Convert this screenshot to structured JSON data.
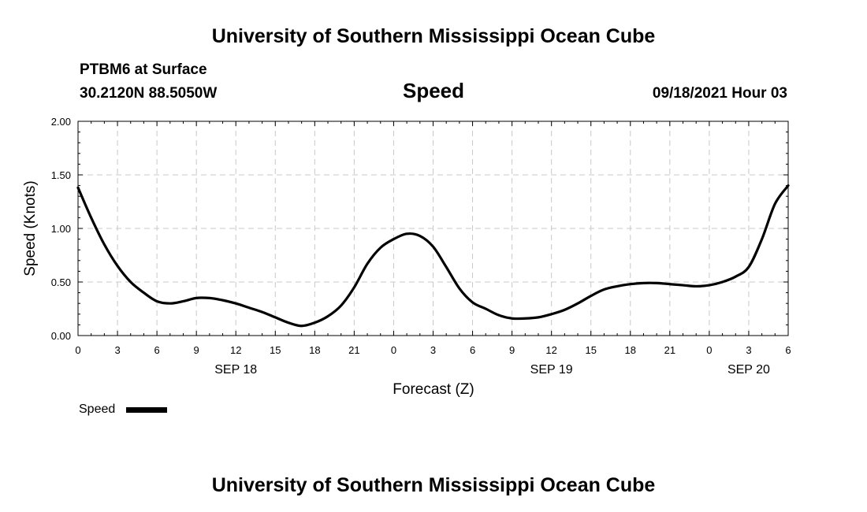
{
  "header": {
    "title_top": "University of Southern Mississippi Ocean Cube",
    "title_bottom": "University of Southern Mississippi Ocean Cube",
    "station": "PTBM6 at Surface",
    "coords": "30.2120N  88.5050W",
    "datetime": "09/18/2021 Hour 03"
  },
  "chart_data": {
    "type": "line",
    "title": "Speed",
    "xlabel": "Forecast (Z)",
    "ylabel": "Speed (Knots)",
    "ylim": [
      0,
      2
    ],
    "xlim": [
      0,
      54
    ],
    "grid": true,
    "x_tick_labels": [
      "0",
      "3",
      "6",
      "9",
      "12",
      "15",
      "18",
      "21",
      "0",
      "3",
      "6",
      "9",
      "12",
      "15",
      "18",
      "21",
      "0",
      "3",
      "6"
    ],
    "y_tick_labels": [
      "0.00",
      "0.50",
      "1.00",
      "1.50",
      "2.00"
    ],
    "y_ticks": [
      0,
      0.5,
      1.0,
      1.5,
      2.0
    ],
    "date_labels": [
      {
        "label": "SEP 18",
        "x": 12
      },
      {
        "label": "SEP 19",
        "x": 36
      },
      {
        "label": "SEP 20",
        "x": 51
      }
    ],
    "legend": {
      "label": "Speed",
      "position": "bottom-left"
    },
    "series": [
      {
        "name": "Speed",
        "x": [
          0,
          1,
          2,
          3,
          4,
          5,
          6,
          7,
          8,
          9,
          10,
          11,
          12,
          13,
          14,
          15,
          16,
          17,
          18,
          19,
          20,
          21,
          22,
          23,
          24,
          25,
          26,
          27,
          28,
          29,
          30,
          31,
          32,
          33,
          34,
          35,
          36,
          37,
          38,
          39,
          40,
          41,
          42,
          43,
          44,
          45,
          46,
          47,
          48,
          49,
          50,
          51,
          52,
          53,
          54
        ],
        "values": [
          1.38,
          1.1,
          0.85,
          0.65,
          0.5,
          0.4,
          0.32,
          0.3,
          0.32,
          0.35,
          0.35,
          0.33,
          0.3,
          0.26,
          0.22,
          0.17,
          0.12,
          0.09,
          0.12,
          0.18,
          0.28,
          0.45,
          0.67,
          0.82,
          0.9,
          0.95,
          0.93,
          0.83,
          0.64,
          0.44,
          0.31,
          0.25,
          0.19,
          0.16,
          0.16,
          0.17,
          0.2,
          0.24,
          0.3,
          0.37,
          0.43,
          0.46,
          0.48,
          0.49,
          0.49,
          0.48,
          0.47,
          0.46,
          0.47,
          0.5,
          0.55,
          0.64,
          0.9,
          1.23,
          1.4
        ]
      }
    ]
  }
}
